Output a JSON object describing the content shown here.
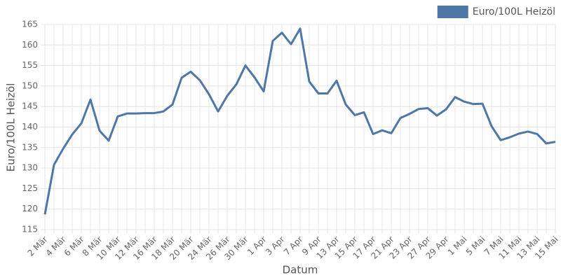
{
  "chart_data": {
    "type": "line",
    "x_label": "Datum",
    "y_label": "Euro/100L Heizöl",
    "categories": [
      "2 Mär",
      null,
      "4 Mär",
      null,
      "6 Mär",
      null,
      "8 Mär",
      null,
      "10 Mär",
      null,
      "12 Mär",
      null,
      "16 Mär",
      null,
      "18 Mär",
      null,
      "20 Mär",
      null,
      "24 Mär",
      null,
      "26 Mär",
      null,
      "30 Mär",
      null,
      "1 Apr",
      null,
      "3 Apr",
      null,
      "7 Apr",
      null,
      "9 Apr",
      null,
      "13 Apr",
      null,
      "15 Apr",
      null,
      "17 Apr",
      null,
      "21 Apr",
      null,
      "23 Apr",
      null,
      "27 Apr",
      null,
      "29 Apr",
      null,
      "1 Mai",
      null,
      "5 Mai",
      null,
      "7 Mai",
      null,
      "11 Mai",
      null,
      "13 Mai",
      null,
      "15 Mai"
    ],
    "series": [
      {
        "name": "Euro/100L Heizöl",
        "color": "#4e77a7",
        "values": [
          118.7,
          130.8,
          134.7,
          138.2,
          140.9,
          146.7,
          139.1,
          136.7,
          142.6,
          143.3,
          143.3,
          143.4,
          143.4,
          143.8,
          145.5,
          152.0,
          153.5,
          151.4,
          148.0,
          143.8,
          147.6,
          150.4,
          155.0,
          152.1,
          148.7,
          161.0,
          163.0,
          160.2,
          164.0,
          151.1,
          148.2,
          148.2,
          151.3,
          145.5,
          142.9,
          143.6,
          138.3,
          139.2,
          138.5,
          142.2,
          143.2,
          144.4,
          144.6,
          142.8,
          144.3,
          147.3,
          146.2,
          145.6,
          145.7,
          140.2,
          136.8,
          137.5,
          138.4,
          138.9,
          138.3,
          136.0,
          136.4
        ]
      }
    ],
    "ylim": [
      115,
      165
    ],
    "yticks": [
      115,
      120,
      125,
      130,
      135,
      140,
      145,
      150,
      155,
      160,
      165
    ],
    "grid": true,
    "legend": "top-right"
  }
}
